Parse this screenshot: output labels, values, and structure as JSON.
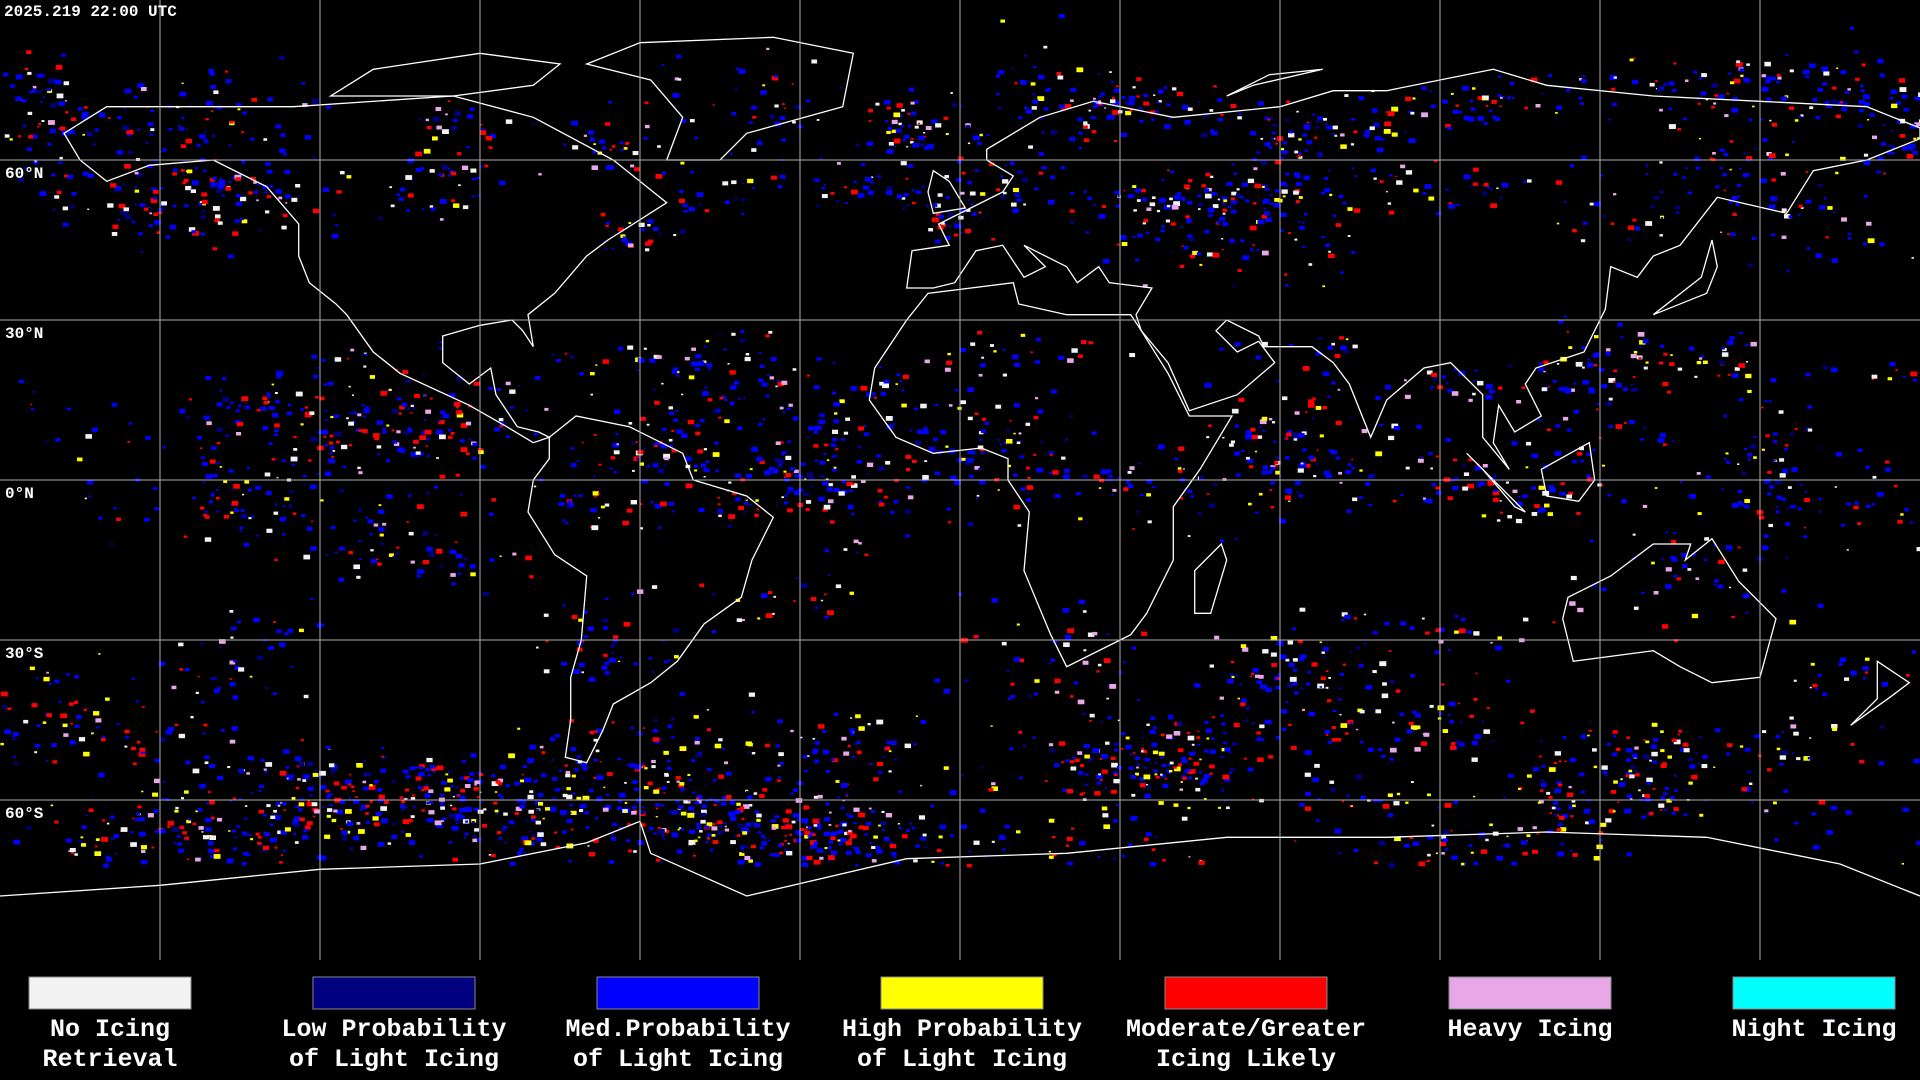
{
  "header": {
    "timestamp": "2025.219 22:00 UTC"
  },
  "map": {
    "lat_labels": [
      "60°N",
      "30°N",
      "0°N",
      "30°S",
      "60°S"
    ]
  },
  "legend": [
    {
      "lines": [
        "No Icing",
        "Retrieval"
      ],
      "color": "#f2f2f2"
    },
    {
      "lines": [
        "Low Probability",
        "of Light Icing"
      ],
      "color": "#000080"
    },
    {
      "lines": [
        "Med.Probability",
        "of Light Icing"
      ],
      "color": "#0000ff"
    },
    {
      "lines": [
        "High Probability",
        "of Light Icing"
      ],
      "color": "#ffff00"
    },
    {
      "lines": [
        "Moderate/Greater",
        "Icing Likely"
      ],
      "color": "#ff0000"
    },
    {
      "lines": [
        "Heavy Icing"
      ],
      "color": "#e8a8e8"
    },
    {
      "lines": [
        "Night Icing"
      ],
      "color": "#00ffff"
    }
  ]
}
